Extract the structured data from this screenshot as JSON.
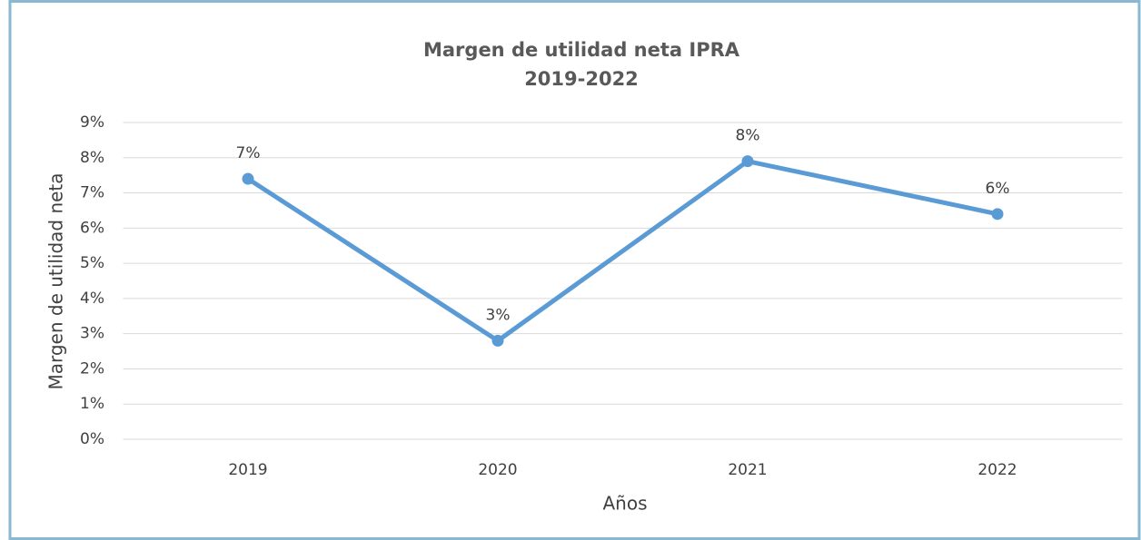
{
  "chart_data": {
    "type": "line",
    "title": "Margen de utilidad neta IPRA",
    "subtitle": "2019-2022",
    "x_label": "Años",
    "y_label": "Margen de utilidad neta",
    "categories": [
      "2019",
      "2020",
      "2021",
      "2022"
    ],
    "series": [
      {
        "name": "Margen de utilidad neta",
        "color": "#5b9bd5",
        "values": [
          7.4,
          2.8,
          7.9,
          6.4
        ],
        "value_labels": [
          "7%",
          "3%",
          "8%",
          "6%"
        ]
      }
    ],
    "ylim": [
      0,
      9
    ],
    "yticks": [
      {
        "value": 0,
        "label": "0%"
      },
      {
        "value": 1,
        "label": "1%"
      },
      {
        "value": 2,
        "label": "2%"
      },
      {
        "value": 3,
        "label": "3%"
      },
      {
        "value": 4,
        "label": "4%"
      },
      {
        "value": 5,
        "label": "5%"
      },
      {
        "value": 6,
        "label": "6%"
      },
      {
        "value": 7,
        "label": "7%"
      },
      {
        "value": 8,
        "label": "8%"
      },
      {
        "value": 9,
        "label": "9%"
      }
    ],
    "grid": true
  }
}
